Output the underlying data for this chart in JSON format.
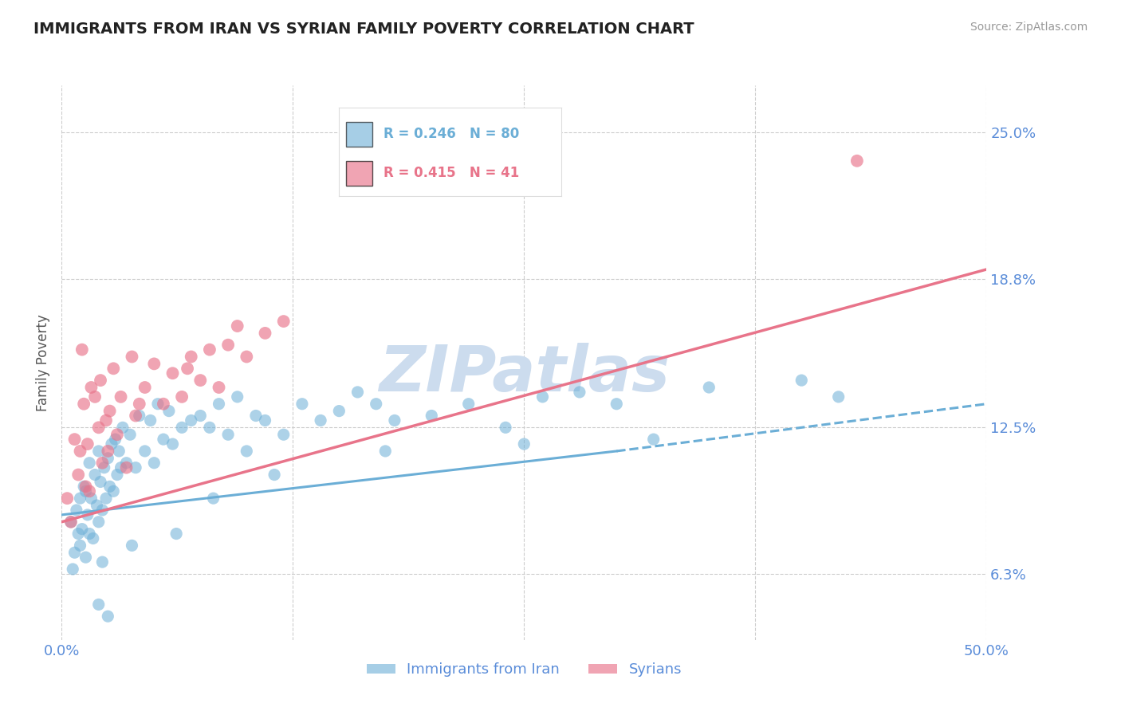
{
  "title": "IMMIGRANTS FROM IRAN VS SYRIAN FAMILY POVERTY CORRELATION CHART",
  "source": "Source: ZipAtlas.com",
  "ylabel": "Family Poverty",
  "xlim": [
    0.0,
    50.0
  ],
  "ylim": [
    3.5,
    27.0
  ],
  "ytick_labels": [
    "25.0%",
    "18.8%",
    "12.5%",
    "6.3%"
  ],
  "ytick_values": [
    25.0,
    18.8,
    12.5,
    6.3
  ],
  "iran_color": "#6baed6",
  "syria_color": "#e8748a",
  "iran_R": 0.246,
  "iran_N": 80,
  "syria_R": 0.415,
  "syria_N": 41,
  "watermark": "ZIPatlas",
  "watermark_color": "#ccdcee",
  "background_color": "#ffffff",
  "title_color": "#222222",
  "axis_label_color": "#5b8dd9",
  "legend_label_color": "#333333",
  "iran_scatter_x": [
    0.5,
    0.7,
    0.8,
    0.9,
    1.0,
    1.0,
    1.1,
    1.2,
    1.3,
    1.4,
    1.5,
    1.5,
    1.6,
    1.7,
    1.8,
    1.9,
    2.0,
    2.0,
    2.1,
    2.2,
    2.3,
    2.4,
    2.5,
    2.6,
    2.7,
    2.8,
    2.9,
    3.0,
    3.1,
    3.2,
    3.3,
    3.5,
    3.7,
    4.0,
    4.2,
    4.5,
    4.8,
    5.0,
    5.2,
    5.5,
    5.8,
    6.0,
    6.5,
    7.0,
    7.5,
    8.0,
    8.5,
    9.0,
    9.5,
    10.0,
    10.5,
    11.0,
    12.0,
    13.0,
    14.0,
    15.0,
    16.0,
    17.0,
    18.0,
    20.0,
    22.0,
    24.0,
    26.0,
    28.0,
    30.0,
    35.0,
    40.0,
    0.6,
    1.3,
    2.2,
    3.8,
    6.2,
    8.2,
    11.5,
    17.5,
    25.0,
    32.0,
    42.0,
    2.0,
    2.5
  ],
  "iran_scatter_y": [
    8.5,
    7.2,
    9.0,
    8.0,
    7.5,
    9.5,
    8.2,
    10.0,
    9.8,
    8.8,
    8.0,
    11.0,
    9.5,
    7.8,
    10.5,
    9.2,
    8.5,
    11.5,
    10.2,
    9.0,
    10.8,
    9.5,
    11.2,
    10.0,
    11.8,
    9.8,
    12.0,
    10.5,
    11.5,
    10.8,
    12.5,
    11.0,
    12.2,
    10.8,
    13.0,
    11.5,
    12.8,
    11.0,
    13.5,
    12.0,
    13.2,
    11.8,
    12.5,
    12.8,
    13.0,
    12.5,
    13.5,
    12.2,
    13.8,
    11.5,
    13.0,
    12.8,
    12.2,
    13.5,
    12.8,
    13.2,
    14.0,
    13.5,
    12.8,
    13.0,
    13.5,
    12.5,
    13.8,
    14.0,
    13.5,
    14.2,
    14.5,
    6.5,
    7.0,
    6.8,
    7.5,
    8.0,
    9.5,
    10.5,
    11.5,
    11.8,
    12.0,
    13.8,
    5.0,
    4.5
  ],
  "syria_scatter_x": [
    0.3,
    0.5,
    0.7,
    0.9,
    1.0,
    1.1,
    1.2,
    1.4,
    1.5,
    1.6,
    1.8,
    2.0,
    2.1,
    2.2,
    2.4,
    2.6,
    2.8,
    3.0,
    3.2,
    3.5,
    3.8,
    4.0,
    4.5,
    5.0,
    5.5,
    6.0,
    6.5,
    7.0,
    7.5,
    8.0,
    8.5,
    9.0,
    10.0,
    11.0,
    12.0,
    1.3,
    2.5,
    4.2,
    6.8,
    9.5,
    43.0
  ],
  "syria_scatter_y": [
    9.5,
    8.5,
    12.0,
    10.5,
    11.5,
    15.8,
    13.5,
    11.8,
    9.8,
    14.2,
    13.8,
    12.5,
    14.5,
    11.0,
    12.8,
    13.2,
    15.0,
    12.2,
    13.8,
    10.8,
    15.5,
    13.0,
    14.2,
    15.2,
    13.5,
    14.8,
    13.8,
    15.5,
    14.5,
    15.8,
    14.2,
    16.0,
    15.5,
    16.5,
    17.0,
    10.0,
    11.5,
    13.5,
    15.0,
    16.8,
    23.8
  ],
  "iran_trend_x0": 0.0,
  "iran_trend_x1": 30.0,
  "iran_trend_y0": 8.8,
  "iran_trend_y1": 11.5,
  "iran_dash_x0": 30.0,
  "iran_dash_x1": 50.0,
  "iran_dash_y0": 11.5,
  "iran_dash_y1": 13.5,
  "syria_trend_x0": 0.0,
  "syria_trend_x1": 50.0,
  "syria_trend_y0": 8.5,
  "syria_trend_y1": 19.2
}
